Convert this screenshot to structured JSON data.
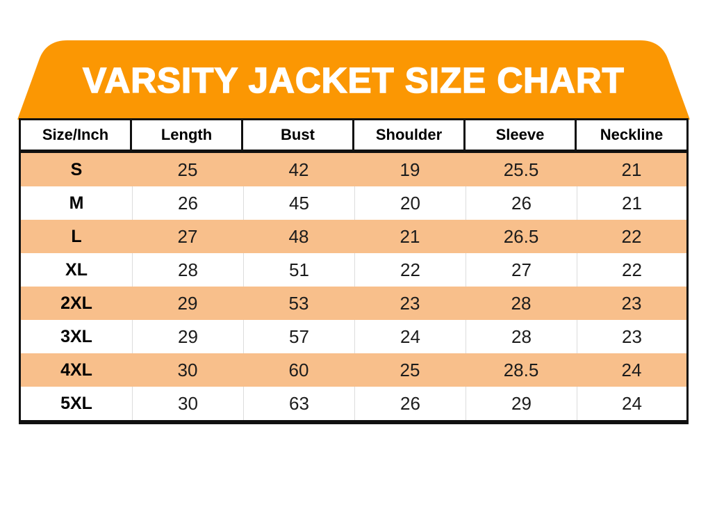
{
  "title": "VARSITY JACKET SIZE CHART",
  "colors": {
    "banner_orange": "#FB9703",
    "row_alt_peach": "#F8BF8B",
    "table_border": "#101010"
  },
  "chart_data": {
    "type": "table",
    "title": "VARSITY JACKET SIZE CHART",
    "unit": "Inch",
    "columns": [
      "Size/Inch",
      "Length",
      "Bust",
      "Shoulder",
      "Sleeve",
      "Neckline"
    ],
    "rows": [
      [
        "S",
        "25",
        "42",
        "19",
        "25.5",
        "21"
      ],
      [
        "M",
        "26",
        "45",
        "20",
        "26",
        "21"
      ],
      [
        "L",
        "27",
        "48",
        "21",
        "26.5",
        "22"
      ],
      [
        "XL",
        "28",
        "51",
        "22",
        "27",
        "22"
      ],
      [
        "2XL",
        "29",
        "53",
        "23",
        "28",
        "23"
      ],
      [
        "3XL",
        "29",
        "57",
        "24",
        "28",
        "23"
      ],
      [
        "4XL",
        "30",
        "60",
        "25",
        "28.5",
        "24"
      ],
      [
        "5XL",
        "30",
        "63",
        "26",
        "29",
        "24"
      ]
    ]
  }
}
